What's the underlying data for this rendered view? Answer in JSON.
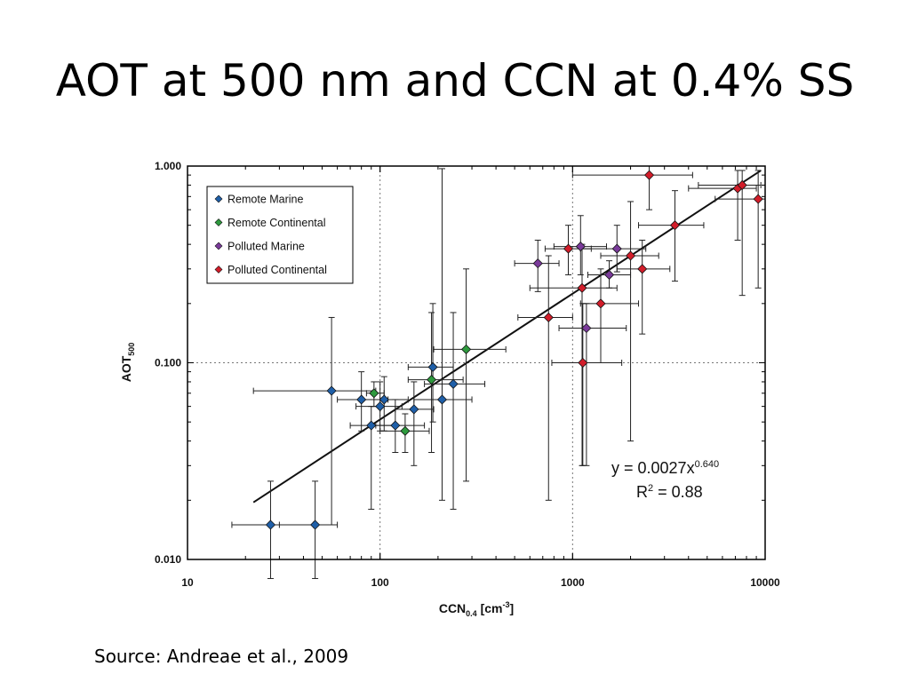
{
  "slide": {
    "title": "AOT at 500 nm and CCN at 0.4% SS",
    "source": "Source:  Andreae et al., 2009"
  },
  "chart_data": {
    "type": "scatter",
    "x_scale": "log",
    "y_scale": "log",
    "xlim": [
      10,
      10000
    ],
    "ylim": [
      0.01,
      1.0
    ],
    "x_ticks": [
      "10",
      "100",
      "1000",
      "10000"
    ],
    "y_ticks": [
      "1.000",
      "0.100",
      "0.010"
    ],
    "xlabel": {
      "main": "CCN",
      "sub": "0.4",
      "unit_prefix": " [cm",
      "unit_sup": "-3",
      "unit_suffix": "]"
    },
    "ylabel": {
      "main": "AOT",
      "sub": "500"
    },
    "reference_lines": {
      "x": [
        100,
        1000
      ],
      "y": [
        0.1
      ]
    },
    "legend_position": "top-left",
    "fit": {
      "label_prefix": "y = 0.0027x",
      "label_exp": "0.640",
      "r2_prefix": "R",
      "r2_sup": "2",
      "r2_value": " = 0.88",
      "a": 0.0027,
      "b": 0.64,
      "x_range": [
        22,
        9500
      ]
    },
    "series": [
      {
        "name": "Remote Marine",
        "color": "#1f5fa8",
        "points": [
          {
            "x": 27,
            "y": 0.015,
            "xerr": [
              17,
              45
            ],
            "yerr": [
              0.008,
              0.025
            ]
          },
          {
            "x": 46,
            "y": 0.015,
            "xerr": [
              30,
              60
            ],
            "yerr": [
              0.008,
              0.025
            ]
          },
          {
            "x": 56,
            "y": 0.072,
            "xerr": [
              22,
              95
            ],
            "yerr": [
              0.015,
              0.17
            ]
          },
          {
            "x": 80,
            "y": 0.065,
            "xerr": [
              60,
              110
            ],
            "yerr": [
              0.045,
              0.09
            ]
          },
          {
            "x": 90,
            "y": 0.048,
            "xerr": [
              70,
              120
            ],
            "yerr": [
              0.018,
              0.06
            ]
          },
          {
            "x": 100,
            "y": 0.06,
            "xerr": [
              75,
              130
            ],
            "yerr": [
              0.045,
              0.08
            ]
          },
          {
            "x": 105,
            "y": 0.065,
            "xerr": [
              80,
              140
            ],
            "yerr": [
              0.045,
              0.085
            ]
          },
          {
            "x": 120,
            "y": 0.048,
            "xerr": [
              95,
              170
            ],
            "yerr": [
              0.035,
              0.065
            ]
          },
          {
            "x": 150,
            "y": 0.058,
            "xerr": [
              120,
              190
            ],
            "yerr": [
              0.03,
              0.08
            ]
          },
          {
            "x": 188,
            "y": 0.095,
            "xerr": [
              140,
              240
            ],
            "yerr": [
              0.05,
              0.2
            ]
          },
          {
            "x": 210,
            "y": 0.065,
            "xerr": [
              150,
              300
            ],
            "yerr": [
              0.02,
              0.97
            ]
          },
          {
            "x": 240,
            "y": 0.078,
            "xerr": [
              170,
              350
            ],
            "yerr": [
              0.018,
              0.18
            ]
          }
        ]
      },
      {
        "name": "Remote Continental",
        "color": "#2e9a3e",
        "points": [
          {
            "x": 93,
            "y": 0.07,
            "xerr": [
              85,
              105
            ],
            "yerr": [
              0.06,
              0.08
            ]
          },
          {
            "x": 135,
            "y": 0.045,
            "xerr": [
              100,
              180
            ],
            "yerr": [
              0.035,
              0.055
            ]
          },
          {
            "x": 185,
            "y": 0.082,
            "xerr": [
              140,
              270
            ],
            "yerr": [
              0.035,
              0.18
            ]
          },
          {
            "x": 280,
            "y": 0.117,
            "xerr": [
              190,
              450
            ],
            "yerr": [
              0.025,
              0.3
            ]
          }
        ]
      },
      {
        "name": "Polluted Marine",
        "color": "#7a3a9a",
        "points": [
          {
            "x": 660,
            "y": 0.32,
            "xerr": [
              500,
              850
            ],
            "yerr": [
              0.23,
              0.42
            ]
          },
          {
            "x": 1100,
            "y": 0.39,
            "xerr": [
              800,
              1500
            ],
            "yerr": [
              0.28,
              0.56
            ]
          },
          {
            "x": 1700,
            "y": 0.38,
            "xerr": [
              1100,
              2400
            ],
            "yerr": [
              0.29,
              0.5
            ]
          },
          {
            "x": 1550,
            "y": 0.28,
            "xerr": [
              1200,
              2000
            ],
            "yerr": [
              0.24,
              0.33
            ]
          },
          {
            "x": 1180,
            "y": 0.15,
            "xerr": [
              850,
              1900
            ],
            "yerr": [
              0.03,
              0.2
            ]
          }
        ]
      },
      {
        "name": "Polluted Continental",
        "color": "#d21d2a",
        "points": [
          {
            "x": 2500,
            "y": 0.9,
            "xerr": [
              1000,
              4200
            ],
            "yerr": [
              0.6,
              1.0
            ]
          },
          {
            "x": 7200,
            "y": 0.77,
            "xerr": [
              4000,
              9000
            ],
            "yerr": [
              0.42,
              0.95
            ]
          },
          {
            "x": 7600,
            "y": 0.8,
            "xerr": [
              4500,
              9500
            ],
            "yerr": [
              0.22,
              0.95
            ]
          },
          {
            "x": 9200,
            "y": 0.68,
            "xerr": [
              5500,
              10000
            ],
            "yerr": [
              0.24,
              0.95
            ]
          },
          {
            "x": 3400,
            "y": 0.5,
            "xerr": [
              2200,
              4800
            ],
            "yerr": [
              0.26,
              0.75
            ]
          },
          {
            "x": 950,
            "y": 0.38,
            "xerr": [
              720,
              1250
            ],
            "yerr": [
              0.28,
              0.5
            ]
          },
          {
            "x": 2000,
            "y": 0.35,
            "xerr": [
              1400,
              2800
            ],
            "yerr": [
              0.04,
              0.66
            ]
          },
          {
            "x": 2300,
            "y": 0.3,
            "xerr": [
              1700,
              3200
            ],
            "yerr": [
              0.14,
              0.42
            ]
          },
          {
            "x": 1120,
            "y": 0.24,
            "xerr": [
              600,
              1700
            ],
            "yerr": [
              0.03,
              0.4
            ]
          },
          {
            "x": 1400,
            "y": 0.2,
            "xerr": [
              1100,
              2200
            ],
            "yerr": [
              0.1,
              0.3
            ]
          },
          {
            "x": 750,
            "y": 0.17,
            "xerr": [
              520,
              1000
            ],
            "yerr": [
              0.02,
              0.35
            ]
          },
          {
            "x": 1130,
            "y": 0.1,
            "xerr": [
              780,
              1800
            ],
            "yerr": [
              0.03,
              0.2
            ]
          }
        ]
      }
    ]
  }
}
